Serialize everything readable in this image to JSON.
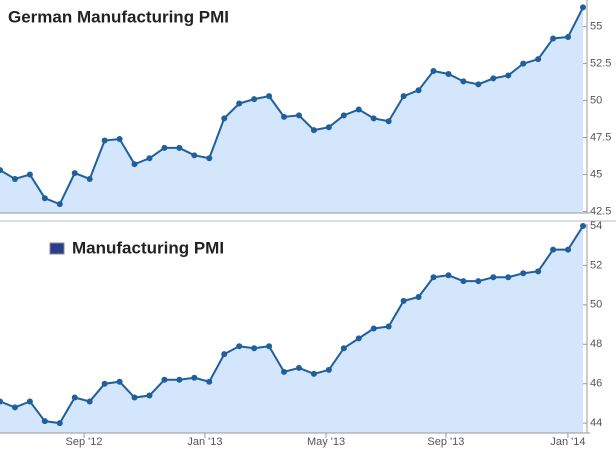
{
  "chart_data": [
    {
      "type": "line",
      "title": "German Manufacturing PMI",
      "color": "#1f5f9e",
      "fill": "#d3e6fb",
      "values": [
        45.3,
        44.7,
        45.0,
        43.4,
        43.0,
        45.1,
        44.7,
        47.3,
        47.4,
        45.7,
        46.1,
        46.8,
        46.8,
        46.3,
        46.1,
        48.8,
        49.8,
        50.1,
        50.3,
        48.9,
        49.0,
        48.0,
        48.2,
        49.0,
        49.4,
        48.8,
        48.6,
        50.3,
        50.7,
        52.0,
        51.8,
        51.3,
        51.1,
        51.5,
        51.7,
        52.5,
        52.8,
        54.2,
        54.3,
        56.3
      ],
      "ylim": [
        42.4,
        56.8
      ],
      "yticks": [
        {
          "value": 42.5,
          "label": "42.5"
        },
        45,
        {
          "value": 47.5,
          "label": "47.5"
        },
        50,
        {
          "value": 52.5,
          "label": "52.5"
        },
        55
      ]
    },
    {
      "type": "line",
      "title": "Manufacturing PMI",
      "color": "#1f5f9e",
      "fill": "#d3e6fb",
      "values": [
        45.1,
        44.8,
        45.1,
        44.1,
        44.0,
        45.3,
        45.1,
        46.0,
        46.1,
        45.3,
        45.4,
        46.2,
        46.2,
        46.3,
        46.1,
        47.5,
        47.9,
        47.8,
        47.9,
        46.6,
        46.8,
        46.5,
        46.7,
        47.8,
        48.3,
        48.8,
        48.9,
        50.2,
        50.4,
        51.4,
        51.5,
        51.2,
        51.2,
        51.4,
        51.4,
        51.6,
        51.7,
        52.8,
        52.8,
        54.0
      ],
      "ylim": [
        43.5,
        54.1
      ],
      "yticks": [
        44,
        46,
        48,
        50,
        52,
        54
      ],
      "xlim": [
        0,
        39
      ],
      "xticks": [
        {
          "value": 5.62,
          "label": "Sep '12"
        },
        {
          "value": 13.71,
          "label": "Jan '13"
        },
        {
          "value": 21.81,
          "label": "May '13"
        },
        {
          "value": 29.83,
          "label": "Sep '13"
        },
        {
          "value": 37.99,
          "label": "Jan '14"
        }
      ]
    }
  ]
}
